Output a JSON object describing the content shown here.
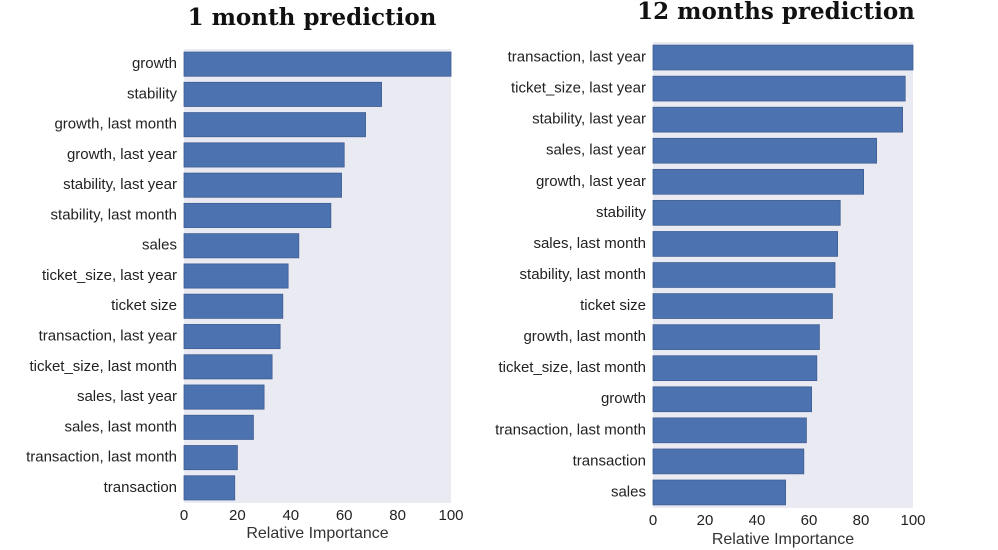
{
  "chart_data": [
    {
      "type": "bar",
      "orientation": "horizontal",
      "title": "1 month prediction",
      "xlabel": "Relative Importance",
      "ylabel": "",
      "categories": [
        "growth",
        "stability",
        "growth, last month",
        "growth, last year",
        "stability, last year",
        "stability, last month",
        "sales",
        "ticket_size, last year",
        "ticket size",
        "transaction, last year",
        "ticket_size, last month",
        "sales, last year",
        "sales, last month",
        "transaction, last month",
        "transaction"
      ],
      "values": [
        100,
        74,
        68,
        60,
        59,
        55,
        43,
        39,
        37,
        36,
        33,
        30,
        26,
        20,
        19
      ],
      "xlim": [
        0,
        100
      ],
      "xticks": [
        "0",
        "20",
        "40",
        "60",
        "80",
        "100"
      ],
      "grid": false,
      "colors": {
        "bar": "#4c72b0",
        "bar_edge": "#3f5f93",
        "background": "#eaeaf2"
      }
    },
    {
      "type": "bar",
      "orientation": "horizontal",
      "title": "12 months prediction",
      "xlabel": "Relative Importance",
      "ylabel": "",
      "categories": [
        "transaction, last year",
        "ticket_size, last year",
        "stability, last year",
        "sales, last year",
        "growth, last year",
        "stability",
        "sales, last month",
        "stability, last month",
        "ticket size",
        "growth, last month",
        "ticket_size, last month",
        "growth",
        "transaction, last month",
        "transaction",
        "sales"
      ],
      "values": [
        100,
        97,
        96,
        86,
        81,
        72,
        71,
        70,
        69,
        64,
        63,
        61,
        59,
        58,
        51
      ],
      "xlim": [
        0,
        100
      ],
      "xticks": [
        "0",
        "20",
        "40",
        "60",
        "80",
        "100"
      ],
      "grid": false,
      "colors": {
        "bar": "#4c72b0",
        "bar_edge": "#3f5f93",
        "background": "#eaeaf2"
      }
    }
  ]
}
